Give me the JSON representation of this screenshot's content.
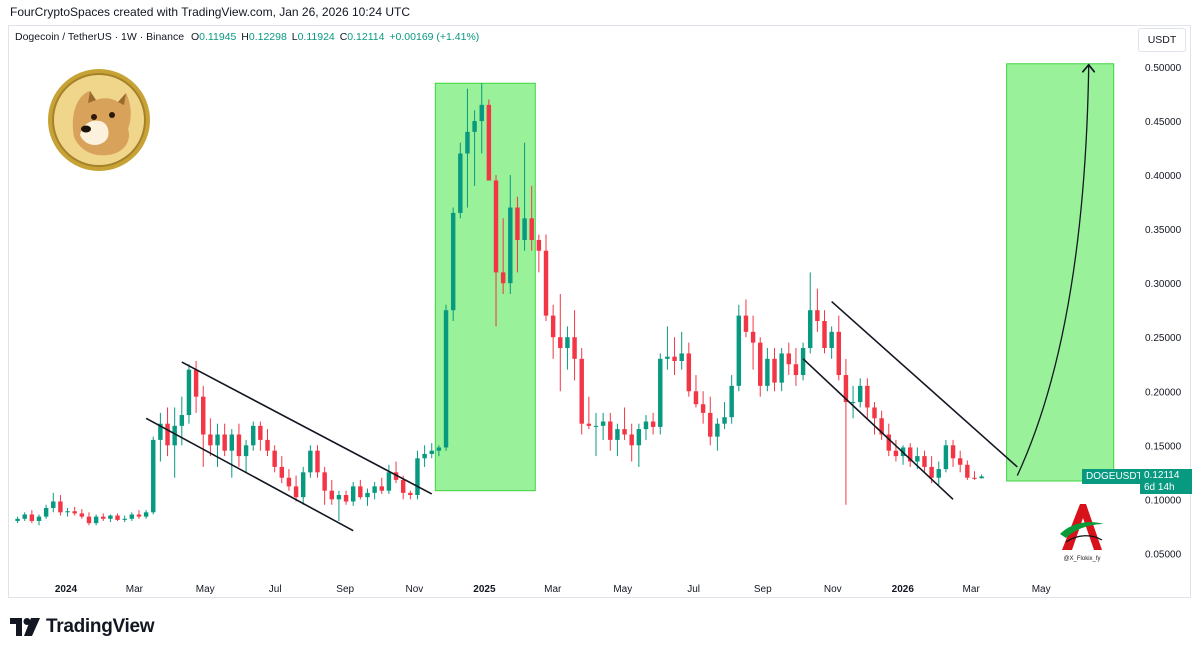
{
  "header": {
    "attribution": "FourCryptoSpaces created with TradingView.com, Jan 26, 2026 10:24 UTC"
  },
  "legend": {
    "symbol": "Dogecoin / TetherUS · 1W · Binance",
    "o_label": "O",
    "o_value": "0.11945",
    "h_label": "H",
    "h_value": "0.12298",
    "l_label": "L",
    "l_value": "0.11924",
    "c_label": "C",
    "c_value": "0.12114",
    "change": "+0.00169 (+1.41%)"
  },
  "axis": {
    "unit": "USDT"
  },
  "last_price": {
    "symbol": "DOGEUSDT",
    "value": "0.12114",
    "countdown": "6d 14h"
  },
  "watermark": {
    "handle": "@X_Flokix_fy"
  },
  "footer": {
    "brand": "TradingView"
  },
  "colors": {
    "up": "#089981",
    "down": "#f23645",
    "box_fill": "#8ef08e",
    "box_stroke": "#3fd43f"
  },
  "chart_data": {
    "type": "candlestick",
    "y_ticks": [
      "0.50000",
      "0.45000",
      "0.40000",
      "0.35000",
      "0.30000",
      "0.25000",
      "0.20000",
      "0.15000",
      "0.10000",
      "0.05000"
    ],
    "y_tick_values": [
      0.5,
      0.45,
      0.4,
      0.35,
      0.3,
      0.25,
      0.2,
      0.15,
      0.1,
      0.05
    ],
    "x_ticks": [
      "2024",
      "Mar",
      "May",
      "Jul",
      "Sep",
      "Nov",
      "2025",
      "Mar",
      "May",
      "Jul",
      "Sep",
      "Nov",
      "2026",
      "Mar",
      "May"
    ],
    "x_tick_bold": [
      true,
      false,
      false,
      false,
      false,
      false,
      true,
      false,
      false,
      false,
      false,
      false,
      true,
      false,
      false
    ],
    "y_range": [
      0.03,
      0.525
    ],
    "candles": [
      [
        0.08,
        0.084,
        0.078,
        0.082
      ],
      [
        0.082,
        0.088,
        0.08,
        0.086
      ],
      [
        0.086,
        0.09,
        0.078,
        0.08
      ],
      [
        0.08,
        0.086,
        0.076,
        0.084
      ],
      [
        0.084,
        0.095,
        0.082,
        0.092
      ],
      [
        0.092,
        0.106,
        0.088,
        0.098
      ],
      [
        0.098,
        0.104,
        0.085,
        0.088
      ],
      [
        0.088,
        0.092,
        0.084,
        0.089
      ],
      [
        0.089,
        0.093,
        0.085,
        0.087
      ],
      [
        0.087,
        0.091,
        0.082,
        0.084
      ],
      [
        0.084,
        0.088,
        0.076,
        0.078
      ],
      [
        0.078,
        0.086,
        0.076,
        0.084
      ],
      [
        0.084,
        0.087,
        0.08,
        0.082
      ],
      [
        0.082,
        0.086,
        0.079,
        0.085
      ],
      [
        0.085,
        0.087,
        0.08,
        0.081
      ],
      [
        0.081,
        0.085,
        0.079,
        0.082
      ],
      [
        0.082,
        0.088,
        0.08,
        0.086
      ],
      [
        0.086,
        0.09,
        0.082,
        0.084
      ],
      [
        0.084,
        0.09,
        0.082,
        0.088
      ],
      [
        0.088,
        0.158,
        0.086,
        0.155
      ],
      [
        0.155,
        0.18,
        0.135,
        0.17
      ],
      [
        0.17,
        0.185,
        0.14,
        0.15
      ],
      [
        0.15,
        0.185,
        0.12,
        0.168
      ],
      [
        0.168,
        0.195,
        0.15,
        0.178
      ],
      [
        0.178,
        0.225,
        0.17,
        0.22
      ],
      [
        0.22,
        0.228,
        0.18,
        0.195
      ],
      [
        0.195,
        0.205,
        0.13,
        0.16
      ],
      [
        0.16,
        0.175,
        0.14,
        0.15
      ],
      [
        0.15,
        0.17,
        0.13,
        0.16
      ],
      [
        0.16,
        0.17,
        0.14,
        0.145
      ],
      [
        0.145,
        0.165,
        0.12,
        0.16
      ],
      [
        0.16,
        0.17,
        0.13,
        0.14
      ],
      [
        0.14,
        0.155,
        0.125,
        0.15
      ],
      [
        0.15,
        0.172,
        0.145,
        0.168
      ],
      [
        0.168,
        0.172,
        0.145,
        0.155
      ],
      [
        0.155,
        0.165,
        0.14,
        0.145
      ],
      [
        0.145,
        0.15,
        0.125,
        0.13
      ],
      [
        0.13,
        0.14,
        0.115,
        0.12
      ],
      [
        0.12,
        0.128,
        0.108,
        0.112
      ],
      [
        0.112,
        0.122,
        0.098,
        0.102
      ],
      [
        0.102,
        0.13,
        0.095,
        0.125
      ],
      [
        0.125,
        0.15,
        0.12,
        0.145
      ],
      [
        0.145,
        0.15,
        0.12,
        0.125
      ],
      [
        0.125,
        0.13,
        0.095,
        0.108
      ],
      [
        0.108,
        0.118,
        0.095,
        0.1
      ],
      [
        0.1,
        0.108,
        0.08,
        0.104
      ],
      [
        0.104,
        0.108,
        0.095,
        0.098
      ],
      [
        0.098,
        0.116,
        0.094,
        0.112
      ],
      [
        0.112,
        0.118,
        0.1,
        0.102
      ],
      [
        0.102,
        0.11,
        0.094,
        0.106
      ],
      [
        0.106,
        0.116,
        0.1,
        0.112
      ],
      [
        0.112,
        0.12,
        0.105,
        0.108
      ],
      [
        0.108,
        0.132,
        0.105,
        0.125
      ],
      [
        0.125,
        0.135,
        0.115,
        0.118
      ],
      [
        0.118,
        0.122,
        0.1,
        0.106
      ],
      [
        0.106,
        0.108,
        0.1,
        0.104
      ],
      [
        0.104,
        0.145,
        0.1,
        0.138
      ],
      [
        0.138,
        0.15,
        0.13,
        0.142
      ],
      [
        0.142,
        0.152,
        0.138,
        0.145
      ],
      [
        0.145,
        0.15,
        0.14,
        0.148
      ],
      [
        0.148,
        0.28,
        0.145,
        0.275
      ],
      [
        0.275,
        0.37,
        0.265,
        0.365
      ],
      [
        0.365,
        0.43,
        0.36,
        0.42
      ],
      [
        0.42,
        0.48,
        0.37,
        0.44
      ],
      [
        0.44,
        0.46,
        0.39,
        0.45
      ],
      [
        0.45,
        0.485,
        0.42,
        0.465
      ],
      [
        0.465,
        0.47,
        0.395,
        0.395
      ],
      [
        0.395,
        0.4,
        0.26,
        0.31
      ],
      [
        0.31,
        0.36,
        0.29,
        0.3
      ],
      [
        0.3,
        0.4,
        0.29,
        0.37
      ],
      [
        0.37,
        0.38,
        0.31,
        0.34
      ],
      [
        0.34,
        0.43,
        0.33,
        0.36
      ],
      [
        0.36,
        0.39,
        0.33,
        0.34
      ],
      [
        0.34,
        0.345,
        0.31,
        0.33
      ],
      [
        0.33,
        0.345,
        0.265,
        0.27
      ],
      [
        0.27,
        0.28,
        0.23,
        0.25
      ],
      [
        0.25,
        0.29,
        0.2,
        0.24
      ],
      [
        0.24,
        0.26,
        0.22,
        0.25
      ],
      [
        0.25,
        0.275,
        0.21,
        0.23
      ],
      [
        0.23,
        0.24,
        0.16,
        0.17
      ],
      [
        0.17,
        0.195,
        0.165,
        0.168
      ],
      [
        0.168,
        0.18,
        0.14,
        0.168
      ],
      [
        0.168,
        0.18,
        0.155,
        0.172
      ],
      [
        0.172,
        0.18,
        0.145,
        0.155
      ],
      [
        0.155,
        0.17,
        0.14,
        0.165
      ],
      [
        0.165,
        0.185,
        0.155,
        0.16
      ],
      [
        0.16,
        0.17,
        0.135,
        0.15
      ],
      [
        0.15,
        0.17,
        0.13,
        0.165
      ],
      [
        0.165,
        0.178,
        0.155,
        0.172
      ],
      [
        0.172,
        0.18,
        0.16,
        0.167
      ],
      [
        0.167,
        0.235,
        0.16,
        0.23
      ],
      [
        0.23,
        0.26,
        0.22,
        0.232
      ],
      [
        0.232,
        0.25,
        0.215,
        0.228
      ],
      [
        0.228,
        0.255,
        0.22,
        0.235
      ],
      [
        0.235,
        0.245,
        0.195,
        0.2
      ],
      [
        0.2,
        0.215,
        0.185,
        0.188
      ],
      [
        0.188,
        0.2,
        0.17,
        0.18
      ],
      [
        0.18,
        0.195,
        0.15,
        0.158
      ],
      [
        0.158,
        0.175,
        0.145,
        0.17
      ],
      [
        0.17,
        0.19,
        0.165,
        0.176
      ],
      [
        0.176,
        0.215,
        0.17,
        0.205
      ],
      [
        0.205,
        0.28,
        0.2,
        0.27
      ],
      [
        0.27,
        0.285,
        0.25,
        0.255
      ],
      [
        0.255,
        0.27,
        0.22,
        0.245
      ],
      [
        0.245,
        0.25,
        0.195,
        0.205
      ],
      [
        0.205,
        0.24,
        0.2,
        0.23
      ],
      [
        0.23,
        0.24,
        0.2,
        0.208
      ],
      [
        0.208,
        0.24,
        0.2,
        0.235
      ],
      [
        0.235,
        0.245,
        0.215,
        0.225
      ],
      [
        0.225,
        0.24,
        0.205,
        0.215
      ],
      [
        0.215,
        0.245,
        0.21,
        0.24
      ],
      [
        0.24,
        0.31,
        0.235,
        0.275
      ],
      [
        0.275,
        0.295,
        0.255,
        0.265
      ],
      [
        0.265,
        0.275,
        0.235,
        0.24
      ],
      [
        0.24,
        0.26,
        0.23,
        0.255
      ],
      [
        0.255,
        0.27,
        0.21,
        0.215
      ],
      [
        0.215,
        0.23,
        0.095,
        0.19
      ],
      [
        0.19,
        0.205,
        0.175,
        0.19
      ],
      [
        0.19,
        0.212,
        0.185,
        0.205
      ],
      [
        0.205,
        0.212,
        0.175,
        0.185
      ],
      [
        0.185,
        0.19,
        0.16,
        0.175
      ],
      [
        0.175,
        0.182,
        0.155,
        0.16
      ],
      [
        0.16,
        0.17,
        0.14,
        0.145
      ],
      [
        0.145,
        0.155,
        0.135,
        0.14
      ],
      [
        0.14,
        0.15,
        0.132,
        0.148
      ],
      [
        0.148,
        0.152,
        0.13,
        0.135
      ],
      [
        0.135,
        0.148,
        0.128,
        0.14
      ],
      [
        0.14,
        0.145,
        0.125,
        0.13
      ],
      [
        0.13,
        0.14,
        0.115,
        0.12
      ],
      [
        0.12,
        0.135,
        0.113,
        0.128
      ],
      [
        0.128,
        0.155,
        0.125,
        0.15
      ],
      [
        0.15,
        0.155,
        0.13,
        0.138
      ],
      [
        0.138,
        0.145,
        0.125,
        0.132
      ],
      [
        0.132,
        0.136,
        0.118,
        0.12
      ],
      [
        0.12,
        0.126,
        0.118,
        0.119
      ],
      [
        0.1195,
        0.12298,
        0.11924,
        0.12114
      ]
    ],
    "green_boxes": [
      {
        "from_index": 59,
        "to_index": 72,
        "y_top": 0.485,
        "y_bottom": 0.108
      },
      {
        "from_index": 139,
        "to_index": 153,
        "y_top": 0.503,
        "y_bottom": 0.117
      }
    ],
    "channel_lines": [
      {
        "from": [
          23,
          0.227
        ],
        "to": [
          58,
          0.105
        ]
      },
      {
        "from": [
          18,
          0.175
        ],
        "to": [
          47,
          0.071
        ]
      },
      {
        "from": [
          114,
          0.283
        ],
        "to": [
          140,
          0.13
        ]
      },
      {
        "from": [
          110,
          0.23
        ],
        "to": [
          131,
          0.1
        ]
      }
    ],
    "projection_arrow": {
      "from": [
        140,
        0.122
      ],
      "to": [
        150,
        0.502
      ]
    }
  }
}
